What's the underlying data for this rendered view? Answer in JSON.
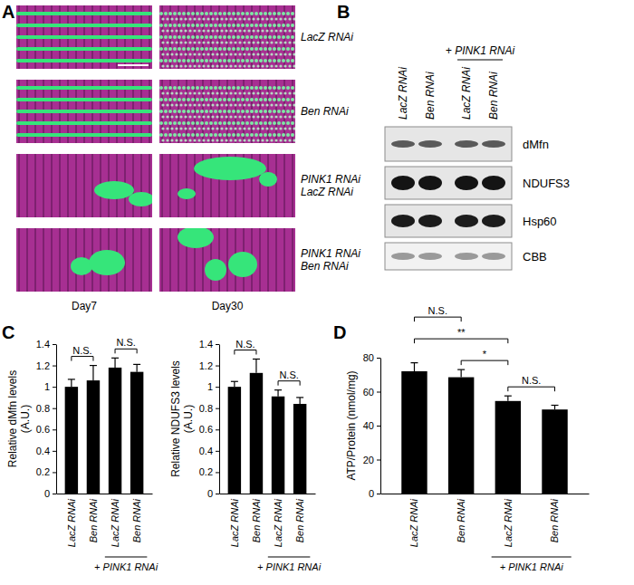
{
  "figure": {
    "panel_labels": [
      "A",
      "B",
      "C",
      "D"
    ],
    "micrographs": {
      "rows": [
        [
          "LacZ RNAi"
        ],
        [
          "Ben RNAi"
        ],
        [
          "PINK1 RNAi",
          "LacZ RNAi"
        ],
        [
          "PINK1 RNAi",
          "Ben RNAi"
        ]
      ],
      "columns": [
        "Day7",
        "Day30"
      ]
    },
    "blot": {
      "lanes": [
        "LacZ RNAi",
        "Ben RNAi",
        "LacZ RNAi",
        "Ben RNAi"
      ],
      "group_label": {
        "text": "+ PINK1 RNAi",
        "from": 2,
        "to": 3
      },
      "rows": [
        "dMfn",
        "NDUFS3",
        "Hsp60",
        "CBB"
      ]
    }
  },
  "chart_data": [
    {
      "type": "bar",
      "ylabel": [
        "Relative dMfn levels",
        "(A.U.)"
      ],
      "categories": [
        "LacZ RNAi",
        "Ben RNAi",
        "LacZ RNAi",
        "Ben RNAi"
      ],
      "values": [
        1.0,
        1.06,
        1.18,
        1.14
      ],
      "errors": [
        0.07,
        0.14,
        0.09,
        0.07
      ],
      "color": "#000000",
      "ylim": [
        0,
        1.4
      ],
      "yticks": [
        0,
        0.2,
        0.4,
        0.6,
        0.8,
        1,
        1.2,
        1.4
      ],
      "group_label": {
        "text": "+ PINK1 RNAi",
        "from": 2,
        "to": 3
      },
      "annotations": [
        {
          "text": "N.S.",
          "from": 0,
          "to": 1
        },
        {
          "text": "N.S.",
          "from": 2,
          "to": 3
        }
      ]
    },
    {
      "type": "bar",
      "ylabel": [
        "Relative NDUFS3 levels",
        "(A.U.)"
      ],
      "categories": [
        "LacZ RNAi",
        "Ben RNAi",
        "LacZ RNAi",
        "Ben RNAi"
      ],
      "values": [
        1.0,
        1.13,
        0.91,
        0.84
      ],
      "errors": [
        0.05,
        0.13,
        0.06,
        0.06
      ],
      "color": "#000000",
      "ylim": [
        0,
        1.4
      ],
      "yticks": [
        0,
        0.2,
        0.4,
        0.6,
        0.8,
        1,
        1.2,
        1.4
      ],
      "group_label": {
        "text": "+ PINK1 RNAi",
        "from": 2,
        "to": 3
      },
      "annotations": [
        {
          "text": "N.S.",
          "from": 0,
          "to": 1
        },
        {
          "text": "N.S.",
          "from": 2,
          "to": 3
        }
      ]
    },
    {
      "type": "bar",
      "ylabel": [
        "ATP/Protein (nmol/mg)"
      ],
      "categories": [
        "LacZ RNAi",
        "Ben RNAi",
        "LacZ RNAi",
        "Ben RNAi"
      ],
      "values": [
        72,
        68.5,
        54.5,
        49.5
      ],
      "errors": [
        5,
        4.5,
        3,
        2.5
      ],
      "color": "#000000",
      "ylim": [
        0,
        80
      ],
      "yticks": [
        0,
        20,
        40,
        60,
        80
      ],
      "group_label": {
        "text": "+ PINK1 RNAi",
        "from": 2,
        "to": 3
      },
      "annotations": [
        {
          "text": "N.S.",
          "from": 2,
          "to": 3
        },
        {
          "text": "*",
          "from": 1,
          "to": 2
        },
        {
          "text": "**",
          "from": 0,
          "to": 2
        },
        {
          "text": "N.S.",
          "from": 0,
          "to": 1
        }
      ]
    }
  ]
}
